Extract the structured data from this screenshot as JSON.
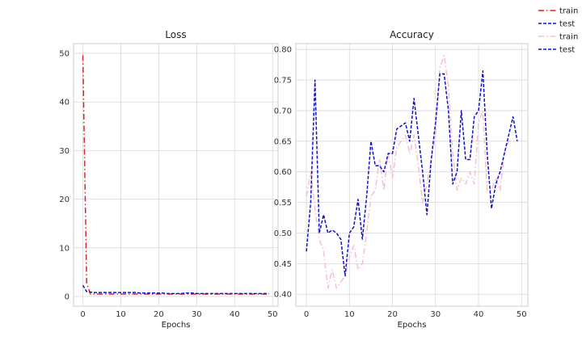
{
  "chart_data": [
    {
      "type": "line",
      "title": "Loss",
      "xlabel": "Epochs",
      "ylabel": "",
      "xlim": [
        -2.45,
        51.45
      ],
      "ylim": [
        -2.0,
        52.0
      ],
      "xticks": [
        "0",
        "10",
        "20",
        "30",
        "40",
        "50"
      ],
      "yticks": [
        "0",
        "10",
        "20",
        "30",
        "40",
        "50"
      ],
      "grid": true,
      "series": [
        {
          "name": "train",
          "color": "#d62728",
          "dash": "7,3,1.5,3",
          "x": [
            0,
            1,
            2,
            3,
            4,
            5,
            6,
            7,
            8,
            9,
            10,
            11,
            12,
            13,
            14,
            15,
            16,
            17,
            18,
            19,
            20,
            21,
            22,
            23,
            24,
            25,
            26,
            27,
            28,
            29,
            30,
            31,
            32,
            33,
            34,
            35,
            36,
            37,
            38,
            39,
            40,
            41,
            42,
            43,
            44,
            45,
            46,
            47,
            48,
            49
          ],
          "y": [
            49.6,
            2.8,
            0.5,
            0.5,
            0.5,
            0.5,
            0.5,
            0.5,
            0.5,
            0.5,
            0.5,
            0.5,
            0.5,
            0.5,
            0.5,
            0.5,
            0.5,
            0.5,
            0.5,
            0.5,
            0.5,
            0.5,
            0.5,
            0.5,
            0.5,
            0.5,
            0.5,
            0.5,
            0.5,
            0.5,
            0.5,
            0.5,
            0.5,
            0.5,
            0.5,
            0.5,
            0.5,
            0.5,
            0.5,
            0.5,
            0.5,
            0.5,
            0.5,
            0.5,
            0.5,
            0.5,
            0.5,
            0.5,
            0.5,
            0.5
          ]
        },
        {
          "name": "test",
          "color": "#1010c8",
          "dash": "4,2",
          "x": [
            0,
            1,
            2,
            3,
            4,
            5,
            6,
            7,
            8,
            9,
            10,
            11,
            12,
            13,
            14,
            15,
            16,
            17,
            18,
            19,
            20,
            21,
            22,
            23,
            24,
            25,
            26,
            27,
            28,
            29,
            30,
            31,
            32,
            33,
            34,
            35,
            36,
            37,
            38,
            39,
            40,
            41,
            42,
            43,
            44,
            45,
            46,
            47,
            48,
            49
          ],
          "y": [
            2.3,
            1.0,
            0.9,
            0.8,
            0.8,
            0.8,
            0.8,
            0.8,
            0.8,
            0.8,
            0.8,
            0.8,
            0.8,
            0.8,
            0.8,
            0.7,
            0.7,
            0.7,
            0.7,
            0.7,
            0.7,
            0.7,
            0.6,
            0.6,
            0.6,
            0.6,
            0.6,
            0.7,
            0.7,
            0.7,
            0.6,
            0.6,
            0.6,
            0.6,
            0.6,
            0.6,
            0.6,
            0.6,
            0.6,
            0.6,
            0.6,
            0.6,
            0.6,
            0.6,
            0.6,
            0.6,
            0.6,
            0.6,
            0.6,
            0.6
          ]
        }
      ]
    },
    {
      "type": "line",
      "title": "Accuracy",
      "xlabel": "Epochs",
      "ylabel": "",
      "xlim": [
        -2.45,
        51.45
      ],
      "ylim": [
        0.3805,
        0.8095
      ],
      "xticks": [
        "0",
        "10",
        "20",
        "30",
        "40",
        "50"
      ],
      "yticks": [
        "0.40",
        "0.45",
        "0.50",
        "0.55",
        "0.60",
        "0.65",
        "0.70",
        "0.75",
        "0.80"
      ],
      "grid": true,
      "series": [
        {
          "name": "train",
          "color": "#f6bfd0",
          "dash": "7,3,1.5,3",
          "x": [
            0,
            1,
            2,
            3,
            4,
            5,
            6,
            7,
            8,
            9,
            10,
            11,
            12,
            13,
            14,
            15,
            16,
            17,
            18,
            19,
            20,
            21,
            22,
            23,
            24,
            25,
            26,
            27,
            28,
            29,
            30,
            31,
            32,
            33,
            34,
            35,
            36,
            37,
            38,
            39,
            40,
            41,
            42,
            43,
            44,
            45,
            46,
            47,
            48,
            49
          ],
          "y": [
            0.56,
            0.6,
            0.54,
            0.49,
            0.47,
            0.41,
            0.44,
            0.41,
            0.42,
            0.43,
            0.46,
            0.48,
            0.44,
            0.45,
            0.5,
            0.56,
            0.57,
            0.62,
            0.57,
            0.63,
            0.59,
            0.64,
            0.65,
            0.66,
            0.63,
            0.66,
            0.61,
            0.55,
            0.58,
            0.62,
            0.66,
            0.77,
            0.79,
            0.74,
            0.63,
            0.57,
            0.59,
            0.58,
            0.6,
            0.58,
            0.68,
            0.7,
            0.57,
            0.57,
            0.59,
            0.57,
            0.63,
            0.65,
            0.65,
            0.65
          ]
        },
        {
          "name": "test",
          "color": "#1010c8",
          "dash": "4,2",
          "x": [
            0,
            1,
            2,
            3,
            4,
            5,
            6,
            7,
            8,
            9,
            10,
            11,
            12,
            13,
            14,
            15,
            16,
            17,
            18,
            19,
            20,
            21,
            22,
            23,
            24,
            25,
            26,
            27,
            28,
            29,
            30,
            31,
            32,
            33,
            34,
            35,
            36,
            37,
            38,
            39,
            40,
            41,
            42,
            43,
            44,
            45,
            46,
            47,
            48,
            49
          ],
          "y": [
            0.47,
            0.55,
            0.75,
            0.5,
            0.53,
            0.5,
            0.505,
            0.5,
            0.49,
            0.43,
            0.5,
            0.51,
            0.555,
            0.49,
            0.56,
            0.65,
            0.61,
            0.61,
            0.6,
            0.63,
            0.63,
            0.67,
            0.675,
            0.68,
            0.65,
            0.72,
            0.66,
            0.6,
            0.53,
            0.62,
            0.68,
            0.76,
            0.76,
            0.7,
            0.58,
            0.6,
            0.7,
            0.62,
            0.62,
            0.69,
            0.7,
            0.765,
            0.63,
            0.54,
            0.58,
            0.6,
            0.63,
            0.66,
            0.69,
            0.65
          ]
        }
      ]
    }
  ],
  "legend": {
    "placement": "top-right",
    "entries": [
      {
        "label": "train",
        "color": "#d62728",
        "dash": "7,3,1.5,3"
      },
      {
        "label": "test",
        "color": "#1010c8",
        "dash": "4,2"
      },
      {
        "label": "train",
        "color": "#f6bfd0",
        "dash": "7,3,1.5,3"
      },
      {
        "label": "test",
        "color": "#1010c8",
        "dash": "4,2"
      }
    ]
  }
}
